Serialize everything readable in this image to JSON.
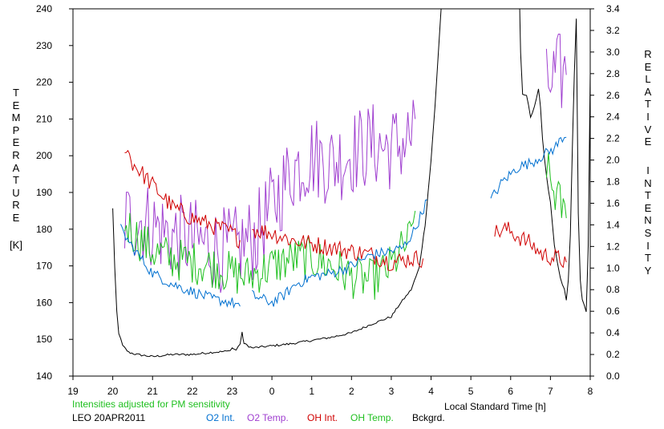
{
  "chart_data": {
    "type": "line",
    "xlabel": "Local Standard Time [h]",
    "x_ticks": [
      "19",
      "20",
      "21",
      "22",
      "23",
      "0",
      "1",
      "2",
      "3",
      "4",
      "5",
      "6",
      "7",
      "8"
    ],
    "xlim": [
      19,
      32
    ],
    "y_left": {
      "label_letters": [
        "T",
        "E",
        "M",
        "P",
        "E",
        "R",
        "A",
        "T",
        "U",
        "R",
        "E"
      ],
      "unit": "[K]",
      "ticks": [
        "140",
        "150",
        "160",
        "170",
        "180",
        "190",
        "200",
        "210",
        "220",
        "230",
        "240"
      ],
      "ylim": [
        140,
        240
      ]
    },
    "y_right": {
      "label_letters_1": [
        "R",
        "E",
        "L",
        "A",
        "T",
        "I",
        "V",
        "E"
      ],
      "label_letters_2": [
        "I",
        "N",
        "T",
        "E",
        "N",
        "S",
        "I",
        "T",
        "Y"
      ],
      "ticks": [
        "0.0",
        "0.2",
        "0.4",
        "0.6",
        "0.8",
        "1.0",
        "1.2",
        "1.4",
        "1.6",
        "1.8",
        "2.0",
        "2.2",
        "2.4",
        "2.6",
        "2.8",
        "3.0",
        "3.2",
        "3.4"
      ],
      "ylim": [
        0,
        3.4
      ]
    },
    "note": "Intensities adjusted for PM sensitivity",
    "station": "LEO 20APR2011",
    "legend": [
      {
        "name": "O2 Int.",
        "color": "#0070d0"
      },
      {
        "name": "O2 Temp.",
        "color": "#a040d0"
      },
      {
        "name": "OH Int.",
        "color": "#d00000"
      },
      {
        "name": "OH Temp.",
        "color": "#20c020"
      },
      {
        "name": "Bckgrd.",
        "color": "#000000"
      }
    ],
    "series": [
      {
        "name": "Bckgrd.",
        "color": "#000000",
        "axis": "right",
        "noise": 0.01,
        "segments": [
          [
            [
              20.0,
              1.55
            ],
            [
              20.05,
              1.0
            ],
            [
              20.1,
              0.6
            ],
            [
              20.15,
              0.4
            ],
            [
              20.25,
              0.28
            ],
            [
              20.4,
              0.22
            ],
            [
              20.6,
              0.2
            ],
            [
              21.0,
              0.18
            ],
            [
              21.5,
              0.2
            ],
            [
              22.0,
              0.2
            ],
            [
              22.5,
              0.22
            ],
            [
              22.9,
              0.23
            ],
            [
              23.0,
              0.26
            ],
            [
              23.1,
              0.24
            ],
            [
              23.2,
              0.3
            ],
            [
              23.25,
              0.4
            ],
            [
              23.3,
              0.3
            ],
            [
              23.5,
              0.26
            ],
            [
              24.0,
              0.28
            ],
            [
              24.5,
              0.3
            ],
            [
              25.0,
              0.33
            ],
            [
              25.5,
              0.36
            ],
            [
              26.0,
              0.4
            ],
            [
              26.5,
              0.48
            ],
            [
              27.0,
              0.55
            ],
            [
              27.2,
              0.66
            ],
            [
              27.5,
              0.8
            ],
            [
              27.7,
              1.0
            ],
            [
              27.85,
              1.4
            ],
            [
              28.0,
              2.0
            ],
            [
              28.1,
              2.5
            ],
            [
              28.2,
              3.1
            ],
            [
              28.28,
              3.55
            ]
          ],
          [
            [
              30.22,
              3.55
            ],
            [
              30.25,
              3.0
            ],
            [
              30.3,
              2.6
            ],
            [
              30.4,
              2.6
            ],
            [
              30.5,
              2.4
            ],
            [
              30.6,
              2.5
            ],
            [
              30.7,
              2.65
            ],
            [
              30.75,
              2.5
            ],
            [
              30.8,
              2.2
            ],
            [
              30.9,
              1.85
            ],
            [
              31.0,
              1.6
            ],
            [
              31.1,
              1.2
            ],
            [
              31.25,
              0.9
            ],
            [
              31.35,
              0.8
            ],
            [
              31.4,
              0.7
            ],
            [
              31.45,
              0.9
            ],
            [
              31.5,
              1.3
            ],
            [
              31.55,
              2.1
            ],
            [
              31.6,
              2.8
            ],
            [
              31.65,
              3.3
            ],
            [
              31.7,
              1.5
            ],
            [
              31.75,
              0.9
            ],
            [
              31.8,
              0.7
            ],
            [
              31.9,
              0.6
            ],
            [
              31.95,
              1.2
            ],
            [
              32.0,
              2.8
            ],
            [
              32.05,
              3.55
            ]
          ]
        ]
      },
      {
        "name": "O2 Temp.",
        "color": "#a040d0",
        "axis": "left",
        "noise": 12,
        "segments": [
          [
            [
              20.3,
              182
            ],
            [
              20.6,
              183
            ],
            [
              21.0,
              181
            ],
            [
              21.5,
              178
            ],
            [
              22.0,
              177
            ],
            [
              22.5,
              175
            ],
            [
              23.0,
              174
            ],
            [
              23.3,
              176
            ],
            [
              23.6,
              178
            ],
            [
              24.0,
              186
            ],
            [
              24.5,
              196
            ],
            [
              25.0,
              200
            ],
            [
              25.5,
              198
            ],
            [
              26.0,
              201
            ],
            [
              26.5,
              203
            ],
            [
              27.0,
              202
            ],
            [
              27.5,
              205
            ],
            [
              27.6,
              210
            ]
          ],
          [
            [
              30.9,
              218
            ],
            [
              31.0,
              220
            ],
            [
              31.2,
              222
            ],
            [
              31.4,
              222
            ]
          ]
        ]
      },
      {
        "name": "OH Temp.",
        "color": "#20c020",
        "axis": "left",
        "noise": 6,
        "segments": [
          [
            [
              20.3,
              182
            ],
            [
              20.6,
              178
            ],
            [
              21.0,
              174
            ],
            [
              21.5,
              172
            ],
            [
              22.0,
              171
            ],
            [
              22.5,
              170
            ],
            [
              23.0,
              168
            ],
            [
              23.3,
              167
            ],
            [
              23.6,
              168
            ],
            [
              24.0,
              170
            ],
            [
              24.5,
              172
            ],
            [
              25.0,
              172
            ],
            [
              25.5,
              170
            ],
            [
              26.0,
              167
            ],
            [
              26.5,
              166
            ],
            [
              27.0,
              170
            ],
            [
              27.5,
              178
            ],
            [
              27.6,
              185
            ]
          ],
          [
            [
              30.9,
              198
            ],
            [
              31.0,
              192
            ],
            [
              31.2,
              188
            ],
            [
              31.4,
              183
            ]
          ]
        ]
      },
      {
        "name": "OH Int.",
        "color": "#d00000",
        "axis": "left",
        "noise": 2.5,
        "segments": [
          [
            [
              20.3,
              203
            ],
            [
              20.5,
              198
            ],
            [
              21.0,
              192
            ],
            [
              21.5,
              186
            ],
            [
              22.0,
              183
            ],
            [
              22.5,
              181
            ],
            [
              23.0,
              179
            ],
            [
              23.2,
              177
            ]
          ],
          [
            [
              23.5,
              180
            ],
            [
              24.0,
              179
            ],
            [
              24.5,
              177
            ],
            [
              25.0,
              176
            ],
            [
              25.5,
              175
            ],
            [
              26.0,
              174
            ],
            [
              26.5,
              173
            ],
            [
              27.0,
              171
            ],
            [
              27.5,
              172
            ],
            [
              27.8,
              172
            ]
          ],
          [
            [
              29.6,
              179
            ],
            [
              29.9,
              180
            ],
            [
              30.2,
              178
            ],
            [
              30.5,
              176
            ],
            [
              30.8,
              173
            ],
            [
              31.2,
              172
            ],
            [
              31.4,
              171
            ]
          ]
        ]
      },
      {
        "name": "O2 Int.",
        "color": "#0070d0",
        "axis": "left",
        "noise": 1.5,
        "segments": [
          [
            [
              20.2,
              180
            ],
            [
              20.5,
              175
            ],
            [
              21.0,
              168
            ],
            [
              21.5,
              165
            ],
            [
              22.0,
              163
            ],
            [
              22.5,
              161
            ],
            [
              23.0,
              160
            ],
            [
              23.2,
              159
            ]
          ],
          [
            [
              23.5,
              162
            ],
            [
              24.0,
              160
            ],
            [
              24.3,
              162
            ],
            [
              24.6,
              165
            ],
            [
              25.0,
              167
            ],
            [
              25.5,
              168
            ],
            [
              26.0,
              170
            ],
            [
              26.5,
              173
            ],
            [
              27.0,
              174
            ],
            [
              27.3,
              175
            ],
            [
              27.6,
              180
            ],
            [
              27.9,
              188
            ]
          ],
          [
            [
              29.5,
              188
            ],
            [
              29.8,
              193
            ],
            [
              30.2,
              197
            ],
            [
              30.5,
              198
            ],
            [
              30.8,
              200
            ],
            [
              31.1,
              202
            ],
            [
              31.3,
              205
            ],
            [
              31.4,
              205
            ]
          ]
        ]
      }
    ]
  }
}
